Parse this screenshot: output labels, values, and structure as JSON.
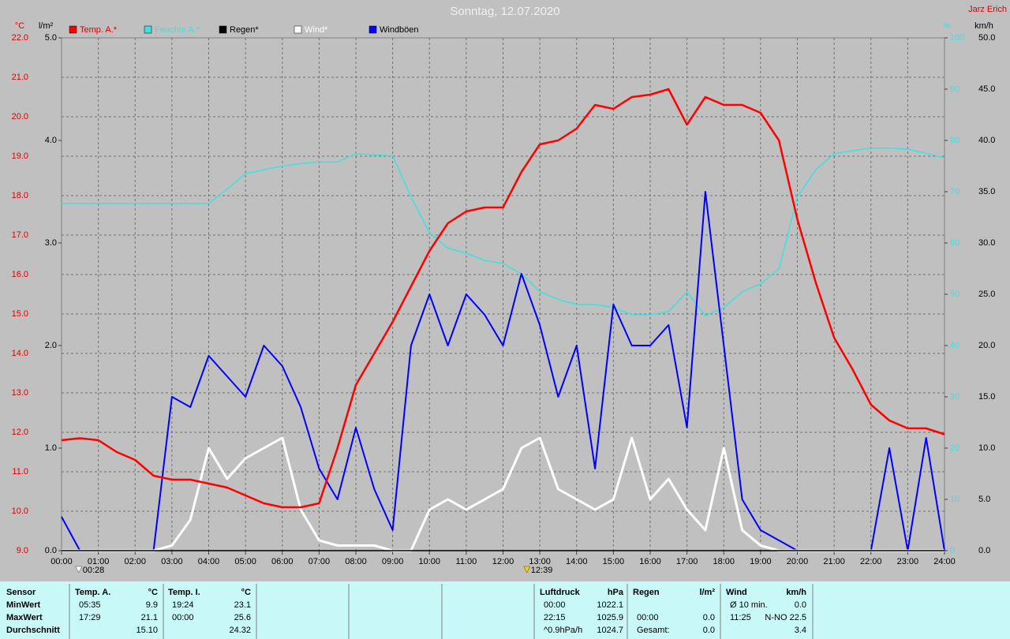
{
  "chart_data": {
    "type": "line",
    "title": "Sonntag, 12.07.2020",
    "author": "Jarz Erich",
    "y_label": "°C",
    "y2_label": "l/m²",
    "y3_label": "%",
    "y4_label": "km/h",
    "grid": true,
    "xlim": [
      0,
      24
    ],
    "xticks": [
      {
        "value": 0,
        "label": "00:00"
      },
      {
        "value": 1,
        "label": "01:00"
      },
      {
        "value": 2,
        "label": "02:00"
      },
      {
        "value": 3,
        "label": "03:00"
      },
      {
        "value": 4,
        "label": "04:00"
      },
      {
        "value": 5,
        "label": "05:00"
      },
      {
        "value": 6,
        "label": "06:00"
      },
      {
        "value": 7,
        "label": "07:00"
      },
      {
        "value": 8,
        "label": "08:00"
      },
      {
        "value": 9,
        "label": "09:00"
      },
      {
        "value": 10,
        "label": "10:00"
      },
      {
        "value": 11,
        "label": "11:00"
      },
      {
        "value": 12,
        "label": "12:00"
      },
      {
        "value": 13,
        "label": "13:00"
      },
      {
        "value": 14,
        "label": "14:00"
      },
      {
        "value": 15,
        "label": "15:00"
      },
      {
        "value": 16,
        "label": "16:00"
      },
      {
        "value": 17,
        "label": "17:00"
      },
      {
        "value": 18,
        "label": "18:00"
      },
      {
        "value": 19,
        "label": "19:00"
      },
      {
        "value": 20,
        "label": "20:00"
      },
      {
        "value": 21,
        "label": "21:00"
      },
      {
        "value": 22,
        "label": "22:00"
      },
      {
        "value": 23,
        "label": "23:00"
      },
      {
        "value": 24,
        "label": "24:00"
      }
    ],
    "ylim": [
      9,
      22
    ],
    "yticks": [
      {
        "value": 9,
        "label": "9.0"
      },
      {
        "value": 10,
        "label": "10.0"
      },
      {
        "value": 11,
        "label": "11.0"
      },
      {
        "value": 12,
        "label": "12.0"
      },
      {
        "value": 13,
        "label": "13.0"
      },
      {
        "value": 14,
        "label": "14.0"
      },
      {
        "value": 15,
        "label": "15.0"
      },
      {
        "value": 16,
        "label": "16.0"
      },
      {
        "value": 17,
        "label": "17.0"
      },
      {
        "value": 18,
        "label": "18.0"
      },
      {
        "value": 19,
        "label": "19.0"
      },
      {
        "value": 20,
        "label": "20.0"
      },
      {
        "value": 21,
        "label": "21.0"
      },
      {
        "value": 22,
        "label": "22.0"
      }
    ],
    "y2lim": [
      0,
      5
    ],
    "y2ticks": [
      {
        "value": 0,
        "label": "0.0"
      },
      {
        "value": 1,
        "label": "1.0"
      },
      {
        "value": 2,
        "label": "2.0"
      },
      {
        "value": 3,
        "label": "3.0"
      },
      {
        "value": 4,
        "label": "4.0"
      },
      {
        "value": 5,
        "label": "5.0"
      }
    ],
    "y3lim": [
      0,
      100
    ],
    "y3ticks": [
      0,
      10,
      20,
      30,
      40,
      50,
      60,
      70,
      80,
      90,
      100
    ],
    "y4lim": [
      0,
      50
    ],
    "y4ticks": [
      {
        "value": 0,
        "label": "0.0"
      },
      {
        "value": 5,
        "label": "5.0"
      },
      {
        "value": 10,
        "label": "10.0"
      },
      {
        "value": 15,
        "label": "15.0"
      },
      {
        "value": 20,
        "label": "20.0"
      },
      {
        "value": 25,
        "label": "25.0"
      },
      {
        "value": 30,
        "label": "30.0"
      },
      {
        "value": 35,
        "label": "35.0"
      },
      {
        "value": 40,
        "label": "40.0"
      },
      {
        "value": 45,
        "label": "45.0"
      },
      {
        "value": 50,
        "label": "50.0"
      }
    ],
    "x": [
      0,
      0.5,
      1,
      1.5,
      2,
      2.5,
      3,
      3.5,
      4,
      4.5,
      5,
      5.5,
      6,
      6.5,
      7,
      7.5,
      8,
      8.5,
      9,
      9.5,
      10,
      10.5,
      11,
      11.5,
      12,
      12.5,
      13,
      13.5,
      14,
      14.5,
      15,
      15.5,
      16,
      16.5,
      17,
      17.5,
      18,
      18.5,
      19,
      19.5,
      20,
      20.5,
      21,
      21.5,
      22,
      22.5,
      23,
      23.5,
      24
    ],
    "series": [
      {
        "name": "Temp. A.*",
        "color": "#ff0000",
        "axis": "y",
        "values": [
          11.8,
          11.85,
          11.8,
          11.5,
          11.3,
          10.9,
          10.8,
          10.8,
          10.7,
          10.6,
          10.4,
          10.2,
          10.1,
          10.1,
          10.2,
          11.6,
          13.2,
          14.0,
          14.8,
          15.7,
          16.6,
          17.3,
          17.6,
          17.7,
          17.7,
          18.6,
          19.3,
          19.4,
          19.7,
          20.3,
          20.2,
          20.5,
          20.56,
          20.7,
          19.8,
          20.5,
          20.3,
          20.3,
          20.1,
          19.4,
          17.4,
          15.8,
          14.4,
          13.6,
          12.7,
          12.3,
          12.1,
          12.1,
          11.95
        ]
      },
      {
        "name": "Feuchte A.*",
        "color": "#40e0e0",
        "axis": "y3",
        "values": [
          67.7,
          67.7,
          67.7,
          67.7,
          67.7,
          67.7,
          67.7,
          67.7,
          67.7,
          70.5,
          73.5,
          74.3,
          75,
          75.5,
          75.8,
          75.8,
          77.4,
          77.2,
          77,
          69,
          62,
          59,
          58,
          56.6,
          56,
          54,
          50.5,
          49,
          48,
          48,
          47.4,
          46,
          46,
          46.6,
          50.5,
          45.8,
          47.4,
          50.5,
          52,
          55,
          69,
          74.3,
          77.4,
          78,
          78.5,
          78.5,
          78.3,
          77.5,
          76.6
        ]
      },
      {
        "name": "Regen*",
        "color": "#000000",
        "axis": "y2",
        "values": [
          0,
          0,
          0,
          0,
          0,
          0,
          0,
          0,
          0,
          0,
          0,
          0,
          0,
          0,
          0,
          0,
          0,
          0,
          0,
          0,
          0,
          0,
          0,
          0,
          0,
          0,
          0,
          0,
          0,
          0,
          0,
          0,
          0,
          0,
          0,
          0,
          0,
          0,
          0,
          0,
          0,
          0,
          0,
          0,
          0,
          0,
          0,
          0,
          0
        ]
      },
      {
        "name": "Wind*",
        "color": "#ffffff",
        "axis": "y4",
        "values": [
          0,
          0,
          0,
          0,
          0,
          0,
          0.5,
          3,
          10,
          7,
          9,
          10,
          11,
          4,
          1,
          0.5,
          0.5,
          0.5,
          0,
          0,
          4,
          5,
          4,
          5,
          6,
          10,
          11,
          6,
          5,
          4,
          5,
          11,
          5,
          7,
          4,
          2,
          10,
          2,
          0.5,
          0,
          0,
          0,
          0,
          0,
          0,
          0,
          0,
          0,
          0
        ]
      },
      {
        "name": "Windböen",
        "color": "#0000ff",
        "axis": "y4",
        "values": [
          3.3,
          0,
          0,
          0,
          0,
          0,
          15,
          14,
          19,
          17,
          15,
          20,
          18,
          14,
          8,
          5,
          12,
          6,
          2,
          20,
          25,
          20,
          25,
          23,
          20,
          27,
          22,
          15,
          20,
          8,
          24,
          20,
          20,
          22,
          12,
          35,
          20,
          5,
          2,
          1,
          0,
          0,
          0,
          0,
          0,
          10,
          0,
          11,
          0
        ]
      }
    ],
    "annotations": [
      {
        "label": "00:28",
        "x": 0.4667
      },
      {
        "label": "12:39",
        "x": 12.65
      }
    ]
  },
  "stats": {
    "row_labels": [
      "Sensor",
      "MinWert",
      "MaxWert",
      "Durchschnitt"
    ],
    "blocks": [
      {
        "title": "Temp. A.",
        "unit": "°C",
        "rows": [
          [
            "05:35",
            "9.9"
          ],
          [
            "17:29",
            "21.1"
          ],
          [
            null,
            "15.10"
          ]
        ]
      },
      {
        "title": "Temp. I.",
        "unit": "°C",
        "rows": [
          [
            "19:24",
            "23.1"
          ],
          [
            "00:00",
            "25.6"
          ],
          [
            null,
            "24.32"
          ]
        ]
      },
      {
        "title": "Luftdruck",
        "unit": "hPa",
        "rows": [
          [
            "00:00",
            "1022.1"
          ],
          [
            "22:15",
            "1025.9"
          ],
          [
            "^0.9hPa/h",
            "1024.7"
          ]
        ]
      },
      {
        "title": "Regen",
        "unit": "l/m²",
        "rows": [
          [
            null,
            null
          ],
          [
            "00:00",
            "0.0"
          ],
          [
            "Gesamt:",
            "0.0"
          ]
        ]
      },
      {
        "title": "Wind",
        "unit": "km/h",
        "rows": [
          [
            "Ø 10 min.",
            "0.0"
          ],
          [
            "11:25",
            "N-NO 22.5"
          ],
          [
            null,
            "3.4"
          ]
        ]
      }
    ]
  }
}
